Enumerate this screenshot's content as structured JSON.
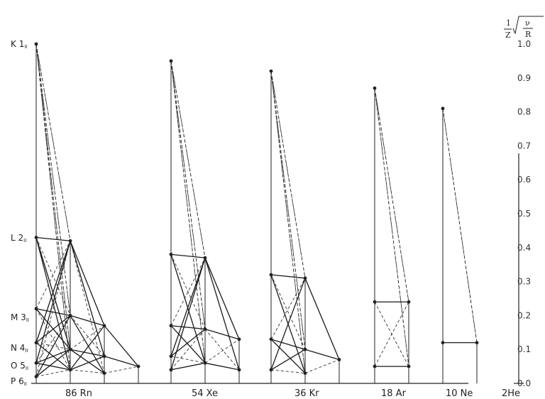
{
  "chart_data": {
    "type": "line",
    "y_title": "1/Z √(ν/R)",
    "y_title_parts": {
      "one": "1",
      "z": "Z",
      "nu": "ν",
      "r": "R"
    },
    "ylim": [
      0.0,
      1.0
    ],
    "y_ticks": [
      "1.0",
      "0.9",
      "0.8",
      "0.7",
      "0.6",
      "0.5",
      "0.4",
      "0.3",
      "0.2",
      "0.1",
      "0.0"
    ],
    "level_labels": [
      {
        "name": "K",
        "number": "1",
        "sub": "II"
      },
      {
        "name": "L",
        "number": "2",
        "sub": "II"
      },
      {
        "name": "M",
        "number": "3",
        "sub": "II"
      },
      {
        "name": "N",
        "number": "4",
        "sub": "II"
      },
      {
        "name": "O",
        "number": "5",
        "sub": "II"
      },
      {
        "name": "P",
        "number": "6",
        "sub": "II"
      }
    ],
    "elements": [
      {
        "label": "86 Rn",
        "Z": 86,
        "levels": {
          "K": 1.0,
          "L": 0.43,
          "M": 0.22,
          "N": 0.12,
          "O": 0.06,
          "P": 0.02
        },
        "shell_levels": [
          [
            1.0,
            0.43,
            0.22,
            0.12,
            0.06,
            0.02
          ],
          [
            0.42,
            0.2,
            0.1,
            0.04
          ],
          [
            0.17,
            0.08,
            0.03
          ],
          [
            0.05
          ]
        ]
      },
      {
        "label": "54 Xe",
        "Z": 54,
        "levels": {
          "K": 0.95,
          "L": 0.38,
          "M": 0.17,
          "N": 0.08,
          "O": 0.04
        },
        "shell_levels": [
          [
            0.95,
            0.38,
            0.17,
            0.08,
            0.04
          ],
          [
            0.37,
            0.16,
            0.06
          ],
          [
            0.13,
            0.04
          ]
        ]
      },
      {
        "label": "36 Kr",
        "Z": 36,
        "levels": {
          "K": 0.92,
          "L": 0.32,
          "M": 0.13,
          "N": 0.04
        },
        "shell_levels": [
          [
            0.92,
            0.32,
            0.13,
            0.04
          ],
          [
            0.31,
            0.1,
            0.03
          ],
          [
            0.07
          ]
        ]
      },
      {
        "label": "18 Ar",
        "Z": 18,
        "levels": {
          "K": 0.87,
          "L": 0.24,
          "M": 0.05
        },
        "shell_levels": [
          [
            0.87,
            0.24,
            0.05
          ],
          [
            0.24,
            0.05
          ]
        ]
      },
      {
        "label": "10 Ne",
        "Z": 10,
        "levels": {
          "K": 0.81,
          "L": 0.12
        },
        "shell_levels": [
          [
            0.81,
            0.12
          ],
          [
            0.12
          ]
        ]
      },
      {
        "label": "2He",
        "Z": 2,
        "levels": {},
        "shell_levels": []
      }
    ],
    "grid": false,
    "legend": "none",
    "colors": {
      "ink": "#222222",
      "solid": "#1a1a1a",
      "dashed": "#333333"
    }
  }
}
